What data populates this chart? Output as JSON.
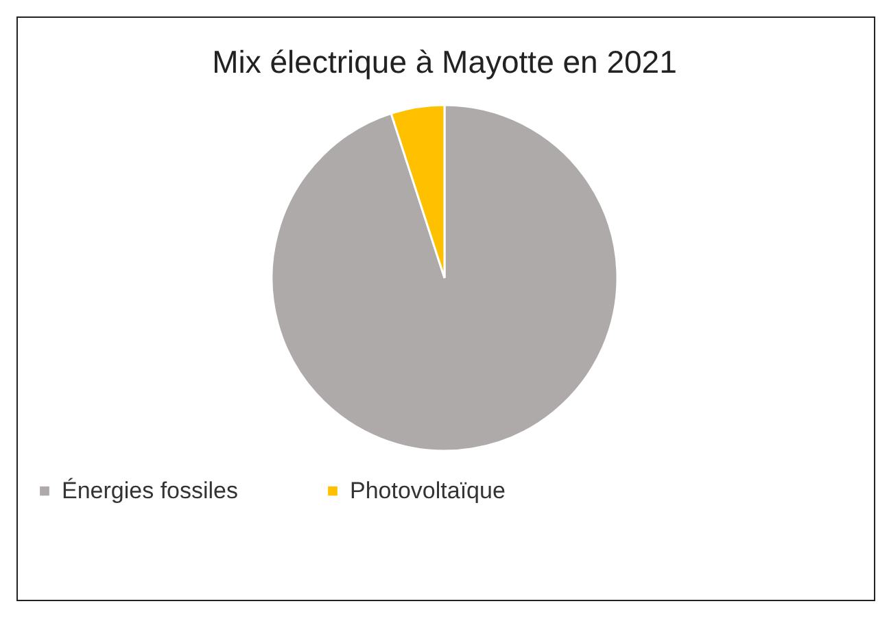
{
  "chart_data": {
    "type": "pie",
    "title": "Mix électrique à Mayotte en 2021",
    "categories": [
      "Énergies fossiles",
      "Photovoltaïque"
    ],
    "values": [
      95,
      5
    ],
    "colors": [
      "#aeaaaa",
      "#ffc000"
    ],
    "legend": "bottom"
  }
}
